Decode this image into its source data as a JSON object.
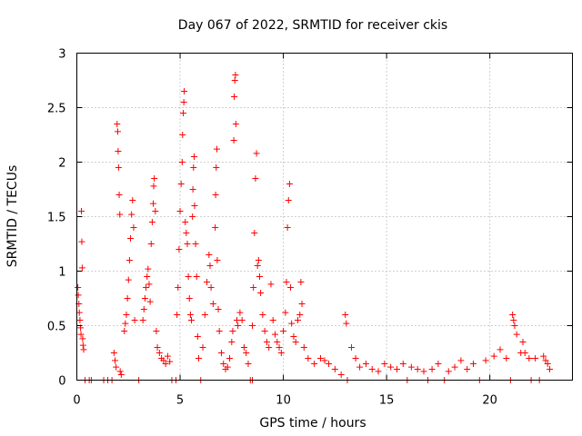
{
  "chart_data": {
    "type": "scatter",
    "title": "Day 067 of 2022, SRMTID for receiver ckis",
    "xlabel": "GPS time / hours",
    "ylabel": "SRMTID / TECUs",
    "xlim": [
      0,
      24
    ],
    "ylim": [
      0,
      3
    ],
    "grid": true,
    "xticks": [
      0,
      5,
      10,
      15,
      20
    ],
    "xtick_labels": [
      "0",
      "5",
      "10",
      "15",
      "20"
    ],
    "yticks": [
      0,
      0.5,
      1,
      1.5,
      2,
      2.5,
      3
    ],
    "ytick_labels": [
      "0",
      "0.5",
      "1",
      "1.5",
      "2",
      "2.5",
      "3"
    ],
    "marker": "+",
    "color": "#ff0000",
    "series": [
      {
        "name": "SRMTID",
        "points": [
          [
            0.05,
            0.85
          ],
          [
            0.07,
            0.78
          ],
          [
            0.1,
            0.7
          ],
          [
            0.12,
            0.62
          ],
          [
            0.15,
            0.55
          ],
          [
            0.18,
            0.48
          ],
          [
            0.2,
            0.42
          ],
          [
            0.22,
            1.55
          ],
          [
            0.24,
            1.27
          ],
          [
            0.26,
            1.03
          ],
          [
            0.28,
            0.38
          ],
          [
            0.3,
            0.32
          ],
          [
            0.33,
            0.28
          ],
          [
            0.4,
            0.0
          ],
          [
            0.6,
            0.0
          ],
          [
            0.7,
            0.0
          ],
          [
            1.3,
            0.0
          ],
          [
            1.5,
            0.0
          ],
          [
            1.7,
            0.0
          ],
          [
            1.8,
            0.25
          ],
          [
            1.85,
            0.18
          ],
          [
            1.9,
            0.12
          ],
          [
            1.95,
            2.35
          ],
          [
            1.98,
            2.28
          ],
          [
            2.0,
            2.1
          ],
          [
            2.02,
            1.95
          ],
          [
            2.05,
            1.7
          ],
          [
            2.08,
            1.52
          ],
          [
            2.1,
            0.08
          ],
          [
            2.15,
            0.05
          ],
          [
            2.3,
            0.45
          ],
          [
            2.35,
            0.52
          ],
          [
            2.4,
            0.6
          ],
          [
            2.45,
            0.75
          ],
          [
            2.5,
            0.92
          ],
          [
            2.55,
            1.1
          ],
          [
            2.6,
            1.3
          ],
          [
            2.65,
            1.52
          ],
          [
            2.7,
            1.65
          ],
          [
            2.75,
            1.4
          ],
          [
            2.8,
            0.55
          ],
          [
            3.0,
            0.0
          ],
          [
            3.2,
            0.55
          ],
          [
            3.25,
            0.65
          ],
          [
            3.3,
            0.75
          ],
          [
            3.35,
            0.85
          ],
          [
            3.4,
            0.95
          ],
          [
            3.45,
            1.02
          ],
          [
            3.5,
            0.88
          ],
          [
            3.55,
            0.72
          ],
          [
            3.6,
            1.25
          ],
          [
            3.65,
            1.45
          ],
          [
            3.7,
            1.62
          ],
          [
            3.72,
            1.78
          ],
          [
            3.75,
            1.85
          ],
          [
            3.8,
            1.55
          ],
          [
            3.85,
            0.45
          ],
          [
            3.9,
            0.3
          ],
          [
            4.0,
            0.25
          ],
          [
            4.1,
            0.2
          ],
          [
            4.2,
            0.18
          ],
          [
            4.3,
            0.15
          ],
          [
            4.4,
            0.22
          ],
          [
            4.5,
            0.17
          ],
          [
            4.6,
            0.0
          ],
          [
            4.8,
            0.0
          ],
          [
            4.85,
            0.6
          ],
          [
            4.9,
            0.85
          ],
          [
            4.95,
            1.2
          ],
          [
            5.0,
            1.55
          ],
          [
            5.05,
            1.8
          ],
          [
            5.1,
            2.0
          ],
          [
            5.12,
            2.25
          ],
          [
            5.15,
            2.45
          ],
          [
            5.18,
            2.55
          ],
          [
            5.2,
            2.65
          ],
          [
            5.25,
            1.45
          ],
          [
            5.3,
            1.35
          ],
          [
            5.35,
            1.25
          ],
          [
            5.4,
            0.95
          ],
          [
            5.45,
            0.75
          ],
          [
            5.5,
            0.6
          ],
          [
            5.55,
            0.55
          ],
          [
            5.6,
            1.5
          ],
          [
            5.62,
            1.75
          ],
          [
            5.65,
            1.95
          ],
          [
            5.68,
            2.05
          ],
          [
            5.7,
            1.6
          ],
          [
            5.75,
            1.25
          ],
          [
            5.8,
            0.95
          ],
          [
            5.85,
            0.4
          ],
          [
            5.9,
            0.2
          ],
          [
            6.0,
            0.0
          ],
          [
            6.1,
            0.3
          ],
          [
            6.2,
            0.6
          ],
          [
            6.3,
            0.9
          ],
          [
            6.4,
            1.15
          ],
          [
            6.45,
            1.05
          ],
          [
            6.5,
            0.85
          ],
          [
            6.6,
            0.7
          ],
          [
            6.7,
            1.4
          ],
          [
            6.72,
            1.7
          ],
          [
            6.75,
            1.95
          ],
          [
            6.78,
            2.12
          ],
          [
            6.8,
            1.1
          ],
          [
            6.85,
            0.65
          ],
          [
            6.9,
            0.45
          ],
          [
            7.0,
            0.25
          ],
          [
            7.1,
            0.15
          ],
          [
            7.2,
            0.1
          ],
          [
            7.3,
            0.12
          ],
          [
            7.4,
            0.2
          ],
          [
            7.5,
            0.35
          ],
          [
            7.55,
            0.45
          ],
          [
            7.6,
            2.2
          ],
          [
            7.62,
            2.6
          ],
          [
            7.65,
            2.75
          ],
          [
            7.68,
            2.8
          ],
          [
            7.7,
            2.35
          ],
          [
            7.75,
            0.55
          ],
          [
            7.8,
            0.5
          ],
          [
            7.9,
            0.62
          ],
          [
            8.0,
            0.55
          ],
          [
            8.1,
            0.3
          ],
          [
            8.2,
            0.25
          ],
          [
            8.3,
            0.15
          ],
          [
            8.4,
            0.0
          ],
          [
            8.5,
            0.0
          ],
          [
            8.5,
            0.5
          ],
          [
            8.55,
            0.85
          ],
          [
            8.6,
            1.35
          ],
          [
            8.65,
            1.85
          ],
          [
            8.7,
            2.08
          ],
          [
            8.75,
            1.05
          ],
          [
            8.8,
            1.1
          ],
          [
            8.85,
            0.95
          ],
          [
            8.9,
            0.8
          ],
          [
            9.0,
            0.6
          ],
          [
            9.1,
            0.45
          ],
          [
            9.2,
            0.35
          ],
          [
            9.3,
            0.3
          ],
          [
            9.4,
            0.88
          ],
          [
            9.5,
            0.55
          ],
          [
            9.6,
            0.42
          ],
          [
            9.7,
            0.35
          ],
          [
            9.8,
            0.3
          ],
          [
            9.9,
            0.25
          ],
          [
            10.0,
            0.45
          ],
          [
            10.1,
            0.62
          ],
          [
            10.15,
            0.9
          ],
          [
            10.2,
            1.4
          ],
          [
            10.25,
            1.65
          ],
          [
            10.3,
            1.8
          ],
          [
            10.35,
            0.85
          ],
          [
            10.4,
            0.52
          ],
          [
            10.5,
            0.4
          ],
          [
            10.6,
            0.35
          ],
          [
            10.7,
            0.55
          ],
          [
            10.8,
            0.6
          ],
          [
            10.85,
            0.9
          ],
          [
            10.9,
            0.7
          ],
          [
            11.0,
            0.3
          ],
          [
            11.2,
            0.2
          ],
          [
            11.5,
            0.15
          ],
          [
            11.8,
            0.2
          ],
          [
            12.0,
            0.18
          ],
          [
            12.2,
            0.15
          ],
          [
            12.5,
            0.1
          ],
          [
            12.8,
            0.05
          ],
          [
            13.0,
            0.6
          ],
          [
            13.05,
            0.52
          ],
          [
            13.1,
            0.0
          ],
          [
            13.3,
            0.3
          ],
          [
            13.5,
            0.2
          ],
          [
            13.7,
            0.12
          ],
          [
            14.0,
            0.15
          ],
          [
            14.3,
            0.1
          ],
          [
            14.6,
            0.08
          ],
          [
            14.9,
            0.15
          ],
          [
            15.2,
            0.12
          ],
          [
            15.5,
            0.1
          ],
          [
            15.8,
            0.15
          ],
          [
            16.0,
            0.0
          ],
          [
            16.2,
            0.12
          ],
          [
            16.5,
            0.1
          ],
          [
            16.8,
            0.08
          ],
          [
            17.0,
            0.0
          ],
          [
            17.2,
            0.1
          ],
          [
            17.5,
            0.15
          ],
          [
            17.8,
            0.0
          ],
          [
            18.0,
            0.08
          ],
          [
            18.3,
            0.12
          ],
          [
            18.6,
            0.18
          ],
          [
            18.9,
            0.1
          ],
          [
            19.2,
            0.15
          ],
          [
            19.5,
            0.0
          ],
          [
            19.8,
            0.18
          ],
          [
            20.2,
            0.22
          ],
          [
            20.5,
            0.28
          ],
          [
            20.8,
            0.2
          ],
          [
            21.0,
            0.0
          ],
          [
            21.1,
            0.6
          ],
          [
            21.15,
            0.55
          ],
          [
            21.2,
            0.5
          ],
          [
            21.3,
            0.42
          ],
          [
            21.5,
            0.25
          ],
          [
            21.6,
            0.35
          ],
          [
            21.7,
            0.25
          ],
          [
            21.9,
            0.2
          ],
          [
            22.0,
            0.0
          ],
          [
            22.2,
            0.2
          ],
          [
            22.4,
            0.0
          ],
          [
            22.6,
            0.22
          ],
          [
            22.7,
            0.18
          ],
          [
            22.8,
            0.15
          ],
          [
            22.9,
            0.1
          ]
        ]
      }
    ]
  }
}
